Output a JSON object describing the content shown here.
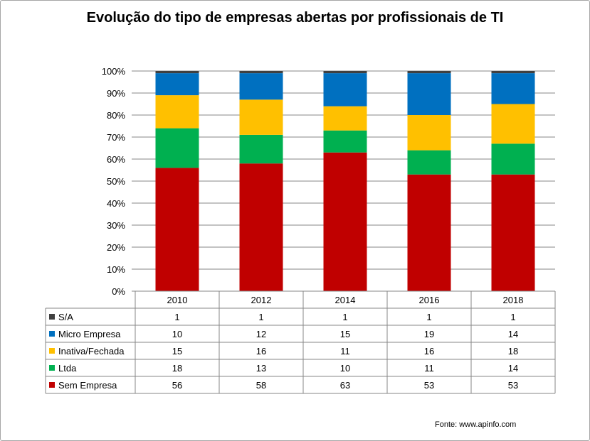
{
  "chart_data": {
    "type": "bar",
    "stacked": true,
    "normalized": true,
    "title": "Evolução do tipo de empresas abertas por profissionais de TI",
    "categories": [
      "2010",
      "2012",
      "2014",
      "2016",
      "2018"
    ],
    "y_ticks": [
      "0%",
      "10%",
      "20%",
      "30%",
      "40%",
      "50%",
      "60%",
      "70%",
      "80%",
      "90%",
      "100%"
    ],
    "ylim": [
      0,
      100
    ],
    "grid": true,
    "legend": "data-table",
    "series": [
      {
        "name": "Sem Empresa",
        "color": "#c00000",
        "values": [
          56,
          58,
          63,
          53,
          53
        ]
      },
      {
        "name": "Ltda",
        "color": "#00b050",
        "values": [
          18,
          13,
          10,
          11,
          14
        ]
      },
      {
        "name": "Inativa/Fechada",
        "color": "#ffc000",
        "values": [
          15,
          16,
          11,
          16,
          18
        ]
      },
      {
        "name": "Micro Empresa",
        "color": "#0070c0",
        "values": [
          10,
          12,
          15,
          19,
          14
        ]
      },
      {
        "name": "S/A",
        "color": "#404040",
        "values": [
          1,
          1,
          1,
          1,
          1
        ]
      }
    ],
    "source": "Fonte:  www.apinfo.com"
  }
}
